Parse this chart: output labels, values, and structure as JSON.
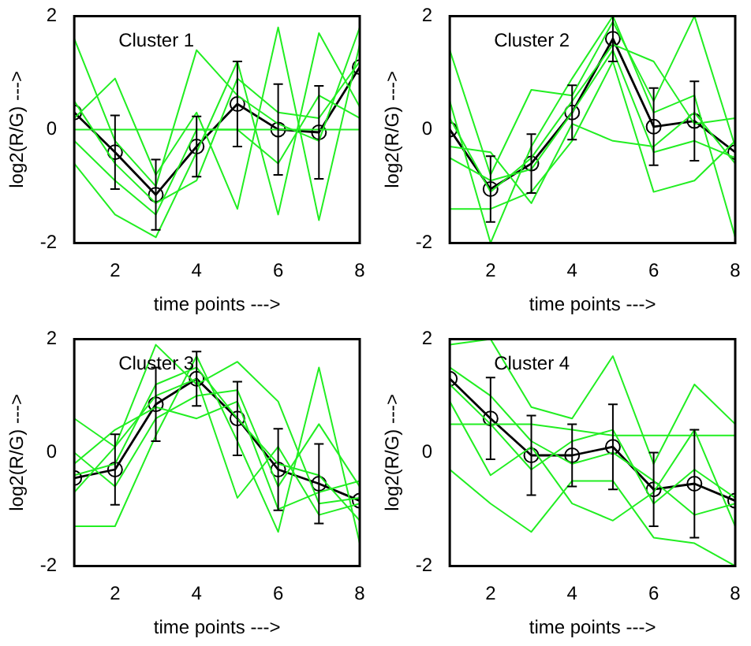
{
  "chart_data": [
    {
      "type": "line",
      "annotations": [
        "Cluster 1"
      ],
      "xlabel": "time points --->",
      "ylabel": "log2(R/G) --->",
      "x": [
        1,
        2,
        3,
        4,
        5,
        6,
        7,
        8
      ],
      "xlim": [
        1,
        8
      ],
      "xticks": [
        2,
        4,
        6,
        8
      ],
      "ylim": [
        -2,
        2
      ],
      "yticks": [
        -2,
        0,
        2
      ],
      "grid": false,
      "legend": false,
      "series": [
        {
          "color": "#22ee22",
          "marker": "none",
          "values": [
            1.6,
            -0.2,
            -1.0,
            1.4,
            0.6,
            0.1,
            -0.2,
            1.8
          ]
        },
        {
          "color": "#22ee22",
          "marker": "none",
          "values": [
            -0.6,
            -1.5,
            -1.9,
            -0.4,
            1.2,
            -1.5,
            1.7,
            0.4
          ]
        },
        {
          "color": "#22ee22",
          "marker": "none",
          "values": [
            0.2,
            0.9,
            -0.8,
            0.3,
            -1.4,
            1.8,
            -1.6,
            1.5
          ]
        },
        {
          "color": "#22ee22",
          "marker": "none",
          "values": [
            0.5,
            -0.6,
            -1.3,
            -0.9,
            0.9,
            0.3,
            0.2,
            1.2
          ]
        },
        {
          "color": "#22ee22",
          "marker": "none",
          "values": [
            -0.2,
            -0.9,
            -1.5,
            0.0,
            0.0,
            -0.6,
            0.6,
            0.2
          ]
        },
        {
          "color": "#22ee22",
          "marker": "none",
          "values": [
            0.0,
            0.0,
            0.0,
            0.0,
            0.0,
            0.0,
            0.0,
            0.0
          ]
        },
        {
          "color": "#000000",
          "marker": "circle",
          "values": [
            0.3,
            -0.4,
            -1.15,
            -0.3,
            0.45,
            0,
            -0.05,
            1.1
          ],
          "errors": [
            null,
            0.65,
            0.62,
            0.53,
            0.75,
            0.8,
            0.82,
            null
          ]
        }
      ]
    },
    {
      "type": "line",
      "annotations": [
        "Cluster 2"
      ],
      "xlabel": "time points --->",
      "ylabel": "log2(R/G) --->",
      "x": [
        1,
        2,
        3,
        4,
        5,
        6,
        7,
        8
      ],
      "xlim": [
        1,
        8
      ],
      "xticks": [
        2,
        4,
        6,
        8
      ],
      "ylim": [
        -2,
        2
      ],
      "yticks": [
        -2,
        0,
        2
      ],
      "grid": false,
      "legend": false,
      "series": [
        {
          "color": "#22ee22",
          "marker": "none",
          "values": [
            1.4,
            -0.8,
            0.7,
            0.6,
            1.9,
            0.5,
            2.0,
            -0.3
          ]
        },
        {
          "color": "#22ee22",
          "marker": "none",
          "values": [
            -1.4,
            -1.4,
            -1.1,
            -0.2,
            1.2,
            -1.1,
            -0.9,
            -0.2
          ]
        },
        {
          "color": "#22ee22",
          "marker": "none",
          "values": [
            0.5,
            -2.0,
            -0.3,
            0.9,
            2.0,
            0.3,
            0.6,
            -1.9
          ]
        },
        {
          "color": "#22ee22",
          "marker": "none",
          "values": [
            -0.3,
            -0.4,
            -1.3,
            0.1,
            -0.2,
            -0.3,
            0.3,
            -0.6
          ]
        },
        {
          "color": "#22ee22",
          "marker": "none",
          "values": [
            0.2,
            -1.1,
            -0.5,
            0.5,
            1.5,
            1.2,
            0.1,
            0.2
          ]
        },
        {
          "color": "#22ee22",
          "marker": "none",
          "values": [
            -0.5,
            -0.9,
            -0.7,
            0.3,
            1.4,
            -0.4,
            -0.2,
            -0.5
          ]
        },
        {
          "color": "#000000",
          "marker": "circle",
          "values": [
            0,
            -1.05,
            -0.6,
            0.3,
            1.6,
            0.05,
            0.15,
            -0.4
          ],
          "errors": [
            null,
            0.58,
            0.52,
            0.48,
            0.4,
            0.68,
            0.7,
            null
          ]
        }
      ]
    },
    {
      "type": "line",
      "annotations": [
        "Cluster 3"
      ],
      "xlabel": "time points --->",
      "ylabel": "log2(R/G) --->",
      "x": [
        1,
        2,
        3,
        4,
        5,
        6,
        7,
        8
      ],
      "xlim": [
        1,
        8
      ],
      "xticks": [
        2,
        4,
        6,
        8
      ],
      "ylim": [
        -2,
        2
      ],
      "yticks": [
        -2,
        0,
        2
      ],
      "grid": false,
      "legend": false,
      "series": [
        {
          "color": "#22ee22",
          "marker": "none",
          "values": [
            0.6,
            0.1,
            1.9,
            1.2,
            1.6,
            0.9,
            -0.9,
            -0.8
          ]
        },
        {
          "color": "#22ee22",
          "marker": "none",
          "values": [
            -1.3,
            -1.3,
            0.3,
            1.7,
            0.2,
            -1.4,
            1.5,
            -1.6
          ]
        },
        {
          "color": "#22ee22",
          "marker": "none",
          "values": [
            -0.7,
            0.1,
            1.0,
            1.3,
            -0.8,
            0.1,
            -1.1,
            -0.9
          ]
        },
        {
          "color": "#22ee22",
          "marker": "none",
          "values": [
            0.0,
            -0.6,
            0.6,
            1.0,
            1.1,
            -0.6,
            0.5,
            -0.6
          ]
        },
        {
          "color": "#22ee22",
          "marker": "none",
          "values": [
            -0.4,
            -0.2,
            1.2,
            1.5,
            0.6,
            -0.2,
            -0.4,
            -1.2
          ]
        },
        {
          "color": "#22ee22",
          "marker": "none",
          "values": [
            -0.2,
            0.4,
            0.8,
            0.6,
            0.9,
            -1.0,
            -0.7,
            -0.5
          ]
        },
        {
          "color": "#000000",
          "marker": "circle",
          "values": [
            -0.45,
            -0.3,
            0.85,
            1.3,
            0.6,
            -0.3,
            -0.55,
            -0.85
          ],
          "errors": [
            null,
            0.62,
            0.65,
            0.48,
            0.65,
            0.72,
            0.7,
            null
          ]
        }
      ]
    },
    {
      "type": "line",
      "annotations": [
        "Cluster 4"
      ],
      "xlabel": "time points --->",
      "ylabel": "log2(R/G) --->",
      "x": [
        1,
        2,
        3,
        4,
        5,
        6,
        7,
        8
      ],
      "xlim": [
        1,
        8
      ],
      "xticks": [
        2,
        4,
        6,
        8
      ],
      "ylim": [
        -2,
        2
      ],
      "yticks": [
        -2,
        0,
        2
      ],
      "grid": false,
      "legend": false,
      "series": [
        {
          "color": "#22ee22",
          "marker": "none",
          "values": [
            1.9,
            2.0,
            0.8,
            0.6,
            1.7,
            -0.2,
            1.2,
            0.5
          ]
        },
        {
          "color": "#22ee22",
          "marker": "none",
          "values": [
            -0.3,
            -0.9,
            -1.4,
            -0.5,
            -0.5,
            -1.5,
            -1.6,
            -2.0
          ]
        },
        {
          "color": "#22ee22",
          "marker": "none",
          "values": [
            1.2,
            0.5,
            -0.3,
            0.2,
            0.4,
            -0.9,
            -0.3,
            -0.8
          ]
        },
        {
          "color": "#22ee22",
          "marker": "none",
          "values": [
            0.5,
            0.5,
            0.5,
            0.4,
            0.3,
            0.3,
            0.3,
            0.3
          ]
        },
        {
          "color": "#22ee22",
          "marker": "none",
          "values": [
            1.5,
            1.0,
            0.2,
            -0.2,
            0.0,
            -0.5,
            -1.1,
            -0.9
          ]
        },
        {
          "color": "#22ee22",
          "marker": "none",
          "values": [
            0.9,
            -0.4,
            0.1,
            -0.9,
            -1.2,
            -0.7,
            0.4,
            -1.3
          ]
        },
        {
          "color": "#000000",
          "marker": "circle",
          "values": [
            1.3,
            0.6,
            -0.05,
            -0.05,
            0.1,
            -0.65,
            -0.55,
            -0.85
          ],
          "errors": [
            null,
            0.72,
            0.7,
            0.55,
            0.75,
            0.65,
            0.95,
            null
          ]
        }
      ]
    }
  ]
}
